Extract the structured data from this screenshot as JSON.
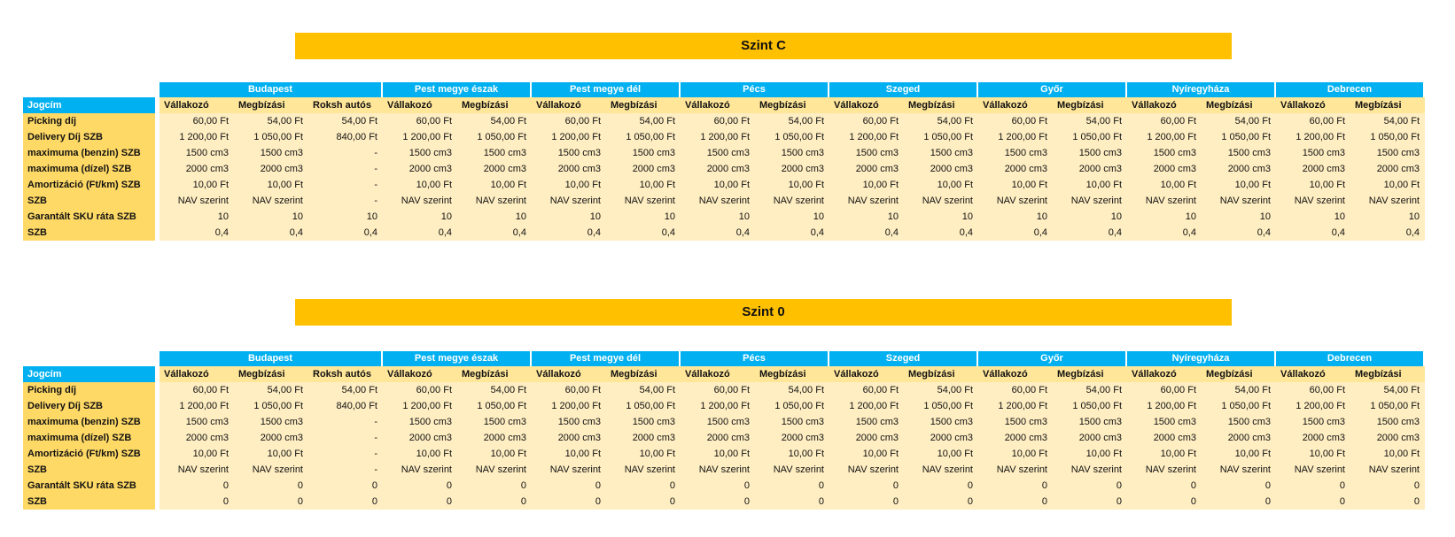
{
  "colors": {
    "header_blue": "#00b0f0",
    "title_orange": "#ffc000",
    "label_gold": "#ffd966",
    "subheader_tan": "#ffe699",
    "cell_cream": "#ffeec2"
  },
  "sections": [
    {
      "title": "Szint C",
      "corner_label": "Jogcím",
      "city_groups": [
        {
          "label": "Budapest",
          "span": 3
        },
        {
          "label": "Pest megye észak",
          "span": 2
        },
        {
          "label": "Pest megye dél",
          "span": 2
        },
        {
          "label": "Pécs",
          "span": 2
        },
        {
          "label": "Szeged",
          "span": 2
        },
        {
          "label": "Győr",
          "span": 2
        },
        {
          "label": "Nyíregyháza",
          "span": 2
        },
        {
          "label": "Debrecen",
          "span": 2
        }
      ],
      "sub_headers": [
        "Vállakozó",
        "Megbízási",
        "Roksh autós",
        "Vállakozó",
        "Megbízási",
        "Vállakozó",
        "Megbízási",
        "Vállakozó",
        "Megbízási",
        "Vállakozó",
        "Megbízási",
        "Vállakozó",
        "Megbízási",
        "Vállakozó",
        "Megbízási",
        "Vállakozó",
        "Megbízási"
      ],
      "rows": [
        {
          "label": "Picking díj",
          "values": [
            "60,00 Ft",
            "54,00 Ft",
            "54,00 Ft",
            "60,00 Ft",
            "54,00 Ft",
            "60,00 Ft",
            "54,00 Ft",
            "60,00 Ft",
            "54,00 Ft",
            "60,00 Ft",
            "54,00 Ft",
            "60,00 Ft",
            "54,00 Ft",
            "60,00 Ft",
            "54,00 Ft",
            "60,00 Ft",
            "54,00 Ft"
          ]
        },
        {
          "label": "Delivery Díj SZB",
          "values": [
            "1 200,00 Ft",
            "1 050,00 Ft",
            "840,00 Ft",
            "1 200,00 Ft",
            "1 050,00 Ft",
            "1 200,00 Ft",
            "1 050,00 Ft",
            "1 200,00 Ft",
            "1 050,00 Ft",
            "1 200,00 Ft",
            "1 050,00 Ft",
            "1 200,00 Ft",
            "1 050,00 Ft",
            "1 200,00 Ft",
            "1 050,00 Ft",
            "1 200,00 Ft",
            "1 050,00 Ft"
          ]
        },
        {
          "label": "maximuma (benzin) SZB",
          "values": [
            "1500 cm3",
            "1500 cm3",
            "-",
            "1500 cm3",
            "1500 cm3",
            "1500 cm3",
            "1500 cm3",
            "1500 cm3",
            "1500 cm3",
            "1500 cm3",
            "1500 cm3",
            "1500 cm3",
            "1500 cm3",
            "1500 cm3",
            "1500 cm3",
            "1500 cm3",
            "1500 cm3"
          ]
        },
        {
          "label": "maximuma (dízel) SZB",
          "values": [
            "2000 cm3",
            "2000 cm3",
            "-",
            "2000 cm3",
            "2000 cm3",
            "2000 cm3",
            "2000 cm3",
            "2000 cm3",
            "2000 cm3",
            "2000 cm3",
            "2000 cm3",
            "2000 cm3",
            "2000 cm3",
            "2000 cm3",
            "2000 cm3",
            "2000 cm3",
            "2000 cm3"
          ]
        },
        {
          "label": "Amortizáció (Ft/km) SZB",
          "values": [
            "10,00 Ft",
            "10,00 Ft",
            "-",
            "10,00 Ft",
            "10,00 Ft",
            "10,00 Ft",
            "10,00 Ft",
            "10,00 Ft",
            "10,00 Ft",
            "10,00 Ft",
            "10,00 Ft",
            "10,00 Ft",
            "10,00 Ft",
            "10,00 Ft",
            "10,00 Ft",
            "10,00 Ft",
            "10,00 Ft"
          ]
        },
        {
          "label": "SZB",
          "values": [
            "NAV szerint",
            "NAV szerint",
            "-",
            "NAV szerint",
            "NAV szerint",
            "NAV szerint",
            "NAV szerint",
            "NAV szerint",
            "NAV szerint",
            "NAV szerint",
            "NAV szerint",
            "NAV szerint",
            "NAV szerint",
            "NAV szerint",
            "NAV szerint",
            "NAV szerint",
            "NAV szerint"
          ]
        },
        {
          "label": "Garantált SKU ráta SZB",
          "values": [
            "10",
            "10",
            "10",
            "10",
            "10",
            "10",
            "10",
            "10",
            "10",
            "10",
            "10",
            "10",
            "10",
            "10",
            "10",
            "10",
            "10"
          ]
        },
        {
          "label": "SZB",
          "values": [
            "0,4",
            "0,4",
            "0,4",
            "0,4",
            "0,4",
            "0,4",
            "0,4",
            "0,4",
            "0,4",
            "0,4",
            "0,4",
            "0,4",
            "0,4",
            "0,4",
            "0,4",
            "0,4",
            "0,4"
          ]
        }
      ]
    },
    {
      "title": "Szint 0",
      "corner_label": "Jogcím",
      "city_groups": [
        {
          "label": "Budapest",
          "span": 3
        },
        {
          "label": "Pest megye észak",
          "span": 2
        },
        {
          "label": "Pest megye dél",
          "span": 2
        },
        {
          "label": "Pécs",
          "span": 2
        },
        {
          "label": "Szeged",
          "span": 2
        },
        {
          "label": "Győr",
          "span": 2
        },
        {
          "label": "Nyíregyháza",
          "span": 2
        },
        {
          "label": "Debrecen",
          "span": 2
        }
      ],
      "sub_headers": [
        "Vállakozó",
        "Megbízási",
        "Roksh autós",
        "Vállakozó",
        "Megbízási",
        "Vállakozó",
        "Megbízási",
        "Vállakozó",
        "Megbízási",
        "Vállakozó",
        "Megbízási",
        "Vállakozó",
        "Megbízási",
        "Vállakozó",
        "Megbízási",
        "Vállakozó",
        "Megbízási"
      ],
      "rows": [
        {
          "label": "Picking díj",
          "values": [
            "60,00 Ft",
            "54,00 Ft",
            "54,00 Ft",
            "60,00 Ft",
            "54,00 Ft",
            "60,00 Ft",
            "54,00 Ft",
            "60,00 Ft",
            "54,00 Ft",
            "60,00 Ft",
            "54,00 Ft",
            "60,00 Ft",
            "54,00 Ft",
            "60,00 Ft",
            "54,00 Ft",
            "60,00 Ft",
            "54,00 Ft"
          ]
        },
        {
          "label": "Delivery Díj SZB",
          "values": [
            "1 200,00 Ft",
            "1 050,00 Ft",
            "840,00 Ft",
            "1 200,00 Ft",
            "1 050,00 Ft",
            "1 200,00 Ft",
            "1 050,00 Ft",
            "1 200,00 Ft",
            "1 050,00 Ft",
            "1 200,00 Ft",
            "1 050,00 Ft",
            "1 200,00 Ft",
            "1 050,00 Ft",
            "1 200,00 Ft",
            "1 050,00 Ft",
            "1 200,00 Ft",
            "1 050,00 Ft"
          ]
        },
        {
          "label": "maximuma (benzin) SZB",
          "values": [
            "1500 cm3",
            "1500 cm3",
            "-",
            "1500 cm3",
            "1500 cm3",
            "1500 cm3",
            "1500 cm3",
            "1500 cm3",
            "1500 cm3",
            "1500 cm3",
            "1500 cm3",
            "1500 cm3",
            "1500 cm3",
            "1500 cm3",
            "1500 cm3",
            "1500 cm3",
            "1500 cm3"
          ]
        },
        {
          "label": "maximuma (dízel) SZB",
          "values": [
            "2000 cm3",
            "2000 cm3",
            "-",
            "2000 cm3",
            "2000 cm3",
            "2000 cm3",
            "2000 cm3",
            "2000 cm3",
            "2000 cm3",
            "2000 cm3",
            "2000 cm3",
            "2000 cm3",
            "2000 cm3",
            "2000 cm3",
            "2000 cm3",
            "2000 cm3",
            "2000 cm3"
          ]
        },
        {
          "label": "Amortizáció (Ft/km) SZB",
          "values": [
            "10,00 Ft",
            "10,00 Ft",
            "-",
            "10,00 Ft",
            "10,00 Ft",
            "10,00 Ft",
            "10,00 Ft",
            "10,00 Ft",
            "10,00 Ft",
            "10,00 Ft",
            "10,00 Ft",
            "10,00 Ft",
            "10,00 Ft",
            "10,00 Ft",
            "10,00 Ft",
            "10,00 Ft",
            "10,00 Ft"
          ]
        },
        {
          "label": "SZB",
          "values": [
            "NAV szerint",
            "NAV szerint",
            "-",
            "NAV szerint",
            "NAV szerint",
            "NAV szerint",
            "NAV szerint",
            "NAV szerint",
            "NAV szerint",
            "NAV szerint",
            "NAV szerint",
            "NAV szerint",
            "NAV szerint",
            "NAV szerint",
            "NAV szerint",
            "NAV szerint",
            "NAV szerint"
          ]
        },
        {
          "label": "Garantált SKU ráta SZB",
          "values": [
            "0",
            "0",
            "0",
            "0",
            "0",
            "0",
            "0",
            "0",
            "0",
            "0",
            "0",
            "0",
            "0",
            "0",
            "0",
            "0",
            "0"
          ]
        },
        {
          "label": "SZB",
          "values": [
            "0",
            "0",
            "0",
            "0",
            "0",
            "0",
            "0",
            "0",
            "0",
            "0",
            "0",
            "0",
            "0",
            "0",
            "0",
            "0",
            "0"
          ]
        }
      ]
    }
  ]
}
